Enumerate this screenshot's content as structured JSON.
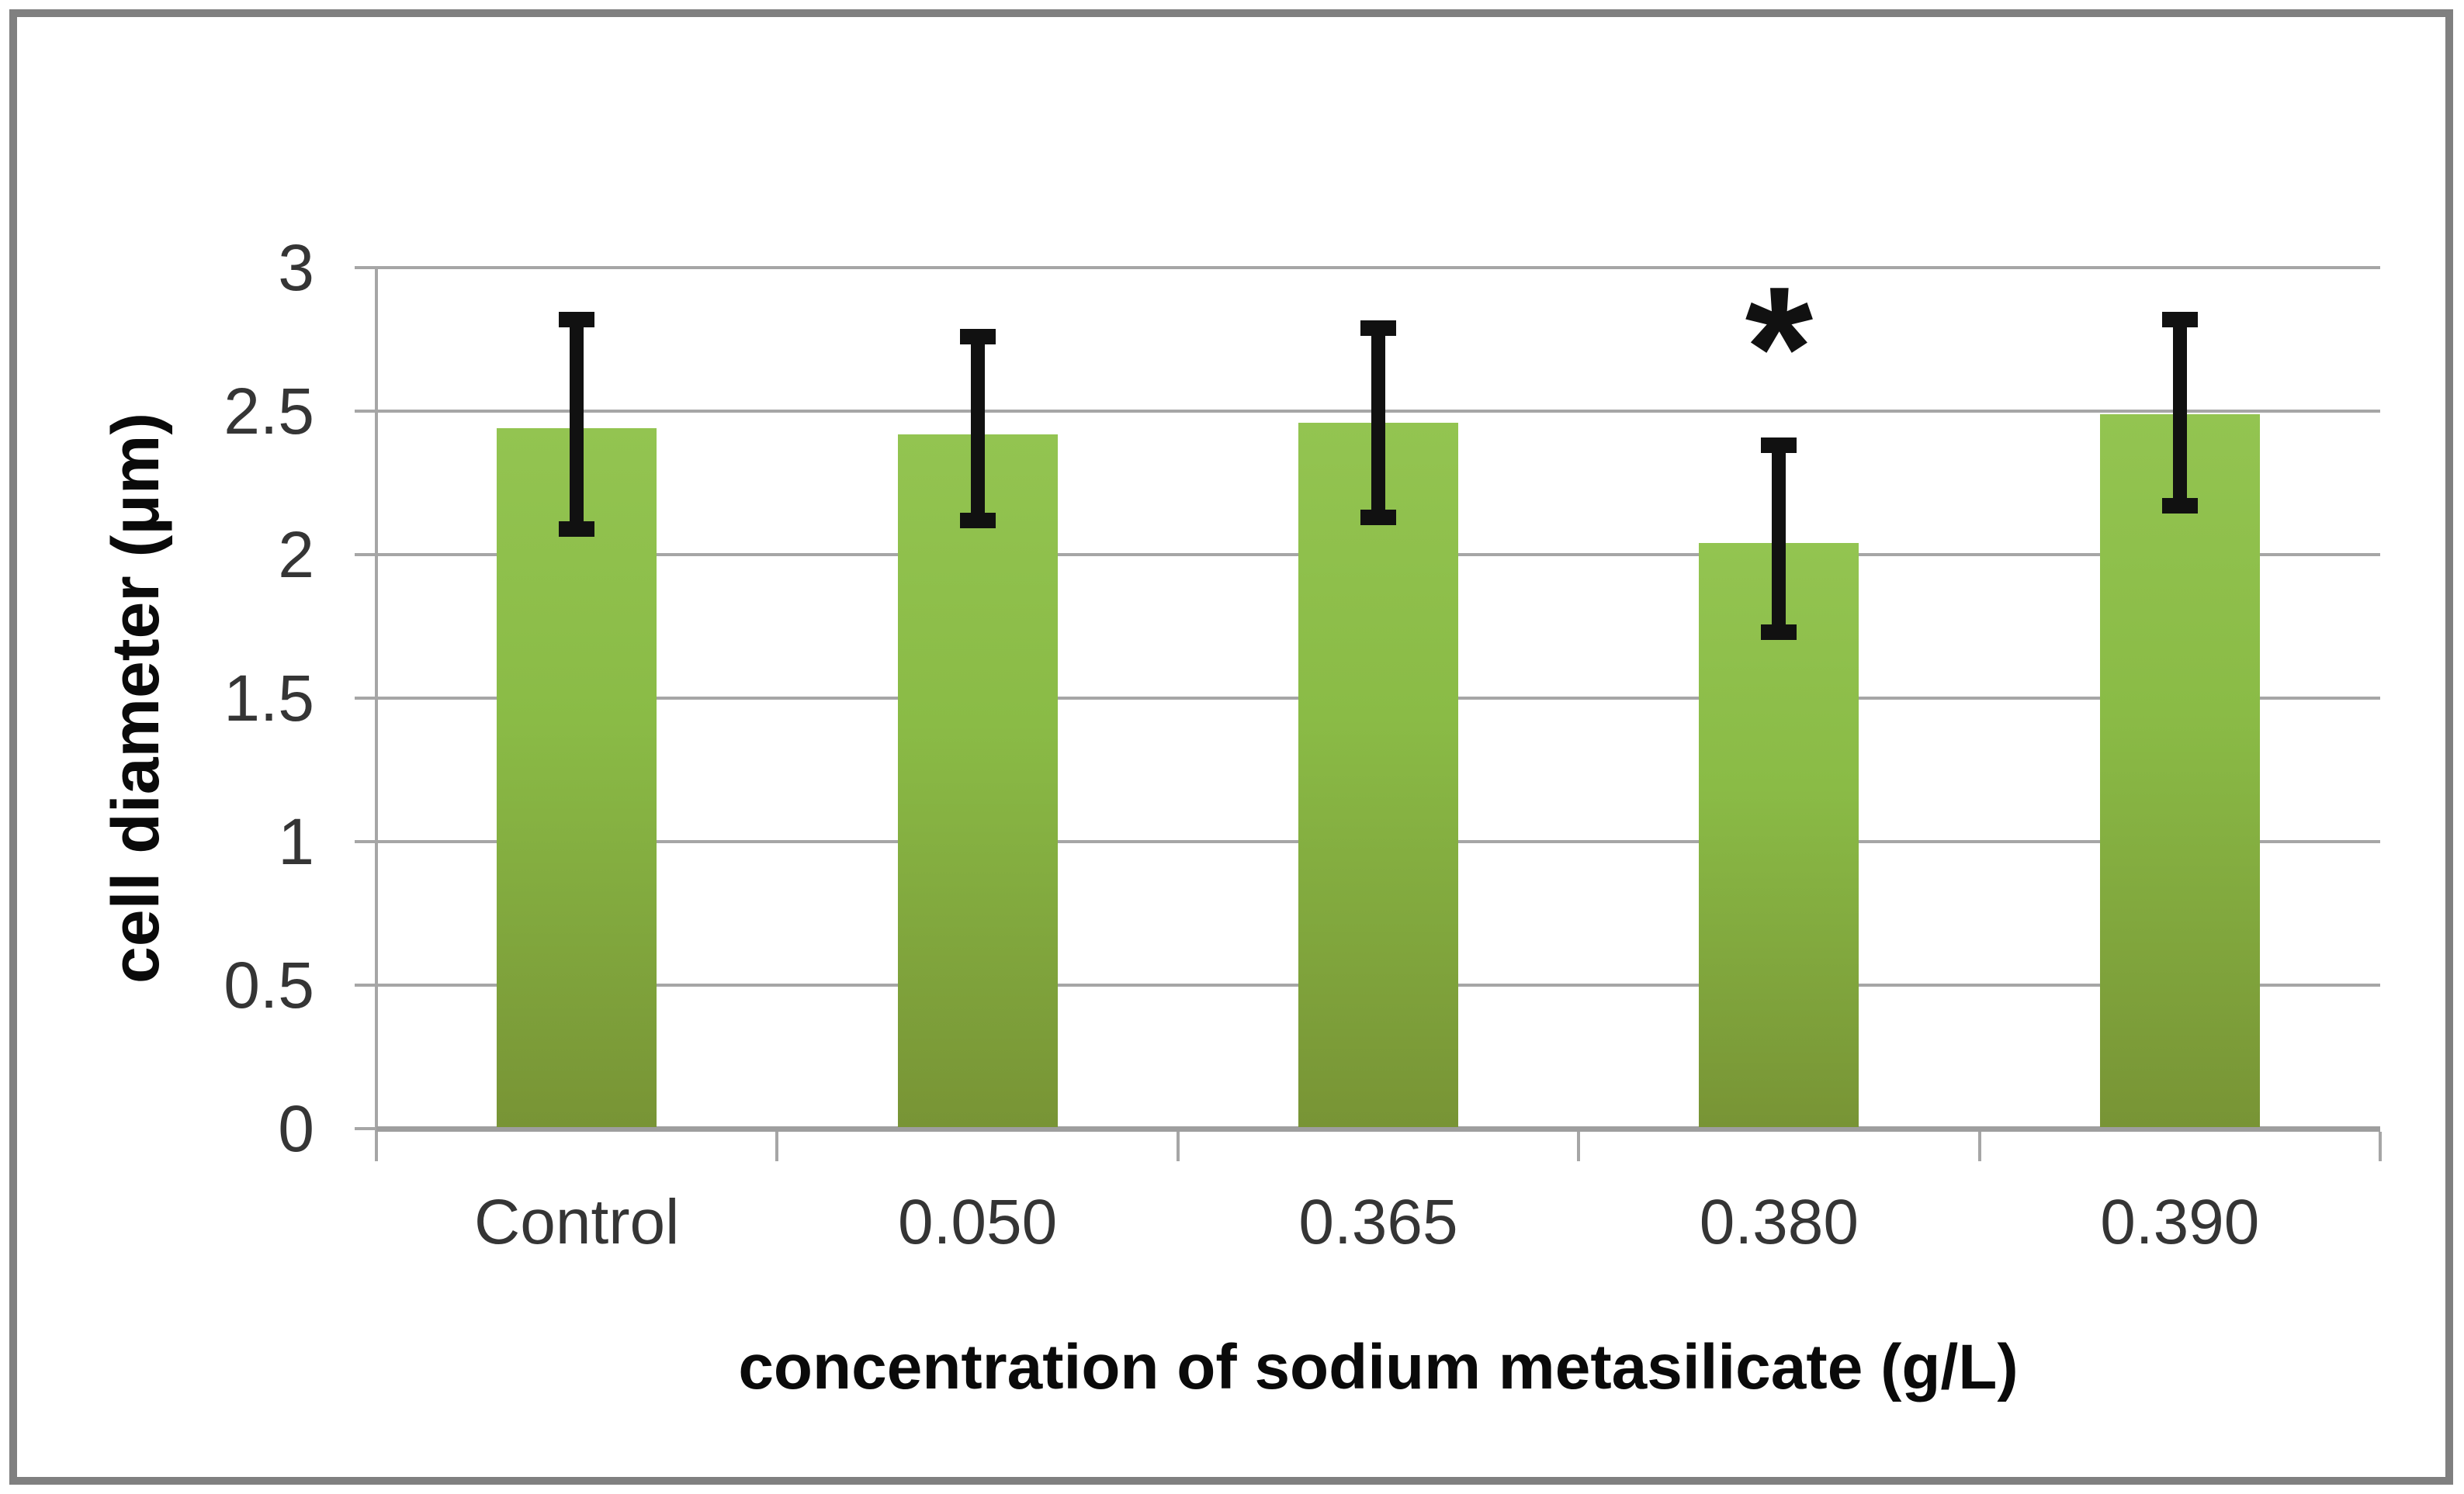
{
  "figure": {
    "background_color": "#ffffff",
    "border_color": "#808080"
  },
  "chart_data": {
    "type": "bar",
    "title": "",
    "categories": [
      "Control",
      "0.050",
      "0.365",
      "0.380",
      "0.390"
    ],
    "series": [
      {
        "name": "cell diameter",
        "values": [
          2.44,
          2.42,
          2.46,
          2.04,
          2.49
        ],
        "error_upper": [
          2.82,
          2.76,
          2.79,
          2.38,
          2.82
        ],
        "error_lower": [
          2.09,
          2.12,
          2.13,
          1.73,
          2.17
        ]
      }
    ],
    "xlabel": "concentration of sodium metasilicate (g/L)",
    "ylabel": "cell diameter (μm)",
    "ylim": [
      0,
      3
    ],
    "ytick_labels_top_to_bottom": [
      "3",
      "2.5",
      "2",
      "1.5",
      "1",
      "0.5",
      "0"
    ],
    "grid": true,
    "legend_position": "none",
    "annotations": [
      {
        "text": "*",
        "category": "0.380",
        "category_index": 3,
        "y_value": 2.72
      }
    ],
    "colors": {
      "bar_gradient_top": "#93c451",
      "bar_gradient_mid": "#8abb46",
      "bar_gradient_bottom": "#789435",
      "gridline": "#a6a6a6",
      "axis": "#9e9e9e",
      "error_bar": "#111111",
      "tick_text": "#353535",
      "title_text": "#0a0a0a"
    }
  }
}
